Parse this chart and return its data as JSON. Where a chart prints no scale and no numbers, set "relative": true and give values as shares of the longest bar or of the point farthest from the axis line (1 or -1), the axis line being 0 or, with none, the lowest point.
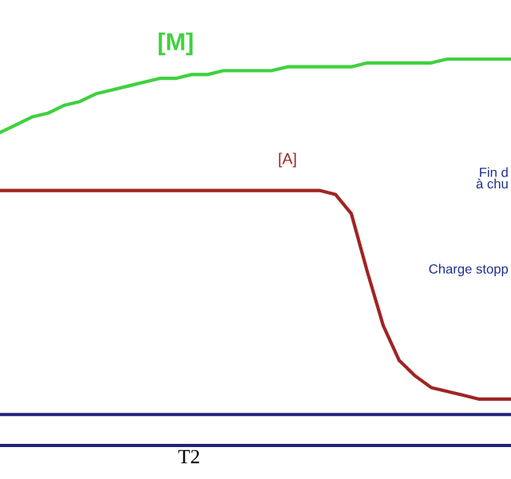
{
  "chart_data": {
    "type": "line",
    "relative": true,
    "xlabel": "T2",
    "categories": [
      null,
      null,
      null,
      null,
      null,
      null,
      null,
      null,
      null,
      null,
      null,
      null,
      null,
      null,
      null,
      null,
      null,
      null,
      null,
      null,
      null,
      null,
      null,
      null,
      null,
      null,
      null,
      null,
      null,
      null,
      null,
      null,
      null
    ],
    "series": [
      {
        "name": "[M]",
        "color": "#3fd13f",
        "values": [
          0.81,
          0.83,
          0.85,
          0.86,
          0.88,
          0.89,
          0.91,
          0.92,
          0.93,
          0.94,
          0.95,
          0.95,
          0.96,
          0.96,
          0.97,
          0.97,
          0.97,
          0.97,
          0.98,
          0.98,
          0.98,
          0.98,
          0.98,
          0.99,
          0.99,
          0.99,
          0.99,
          0.99,
          1.0,
          1.0,
          1.0,
          1.0,
          1.0
        ]
      },
      {
        "name": "[A]",
        "color": "#a02424",
        "values": [
          0.66,
          0.66,
          0.66,
          0.66,
          0.66,
          0.66,
          0.66,
          0.66,
          0.66,
          0.66,
          0.66,
          0.66,
          0.66,
          0.66,
          0.66,
          0.66,
          0.66,
          0.66,
          0.66,
          0.66,
          0.66,
          0.65,
          0.6,
          0.45,
          0.31,
          0.22,
          0.18,
          0.15,
          0.14,
          0.13,
          0.12,
          0.12,
          0.12
        ]
      }
    ],
    "ref_lines": [
      {
        "axis": "y",
        "value": 0.08,
        "color": "#23237a"
      }
    ],
    "annotations": [
      "Fin d\nà chu",
      "Charge stopp"
    ],
    "legend": false,
    "marker": "none",
    "line_style": "solid"
  }
}
